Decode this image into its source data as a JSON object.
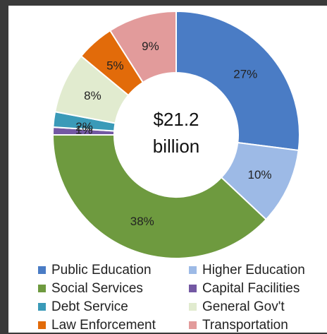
{
  "chart_data": {
    "type": "pie",
    "style": "donut",
    "center_label": [
      "$21.2",
      "billion"
    ],
    "categories": [
      "Public Education",
      "Higher Education",
      "Social Services",
      "Capital Facilities",
      "Debt Service",
      "General Gov't",
      "Law Enforcement",
      "Transportation"
    ],
    "values": [
      27,
      10,
      38,
      1,
      2,
      8,
      5,
      9
    ],
    "value_labels": [
      "27%",
      "10%",
      "38%",
      "1%",
      "2%",
      "8%",
      "5%",
      "9%"
    ],
    "colors": [
      "#4a7cc5",
      "#9dbae6",
      "#6e9a3f",
      "#7358a3",
      "#3a9ab8",
      "#e1ebcf",
      "#e26b0a",
      "#e29b9b"
    ],
    "legend_position": "bottom"
  }
}
